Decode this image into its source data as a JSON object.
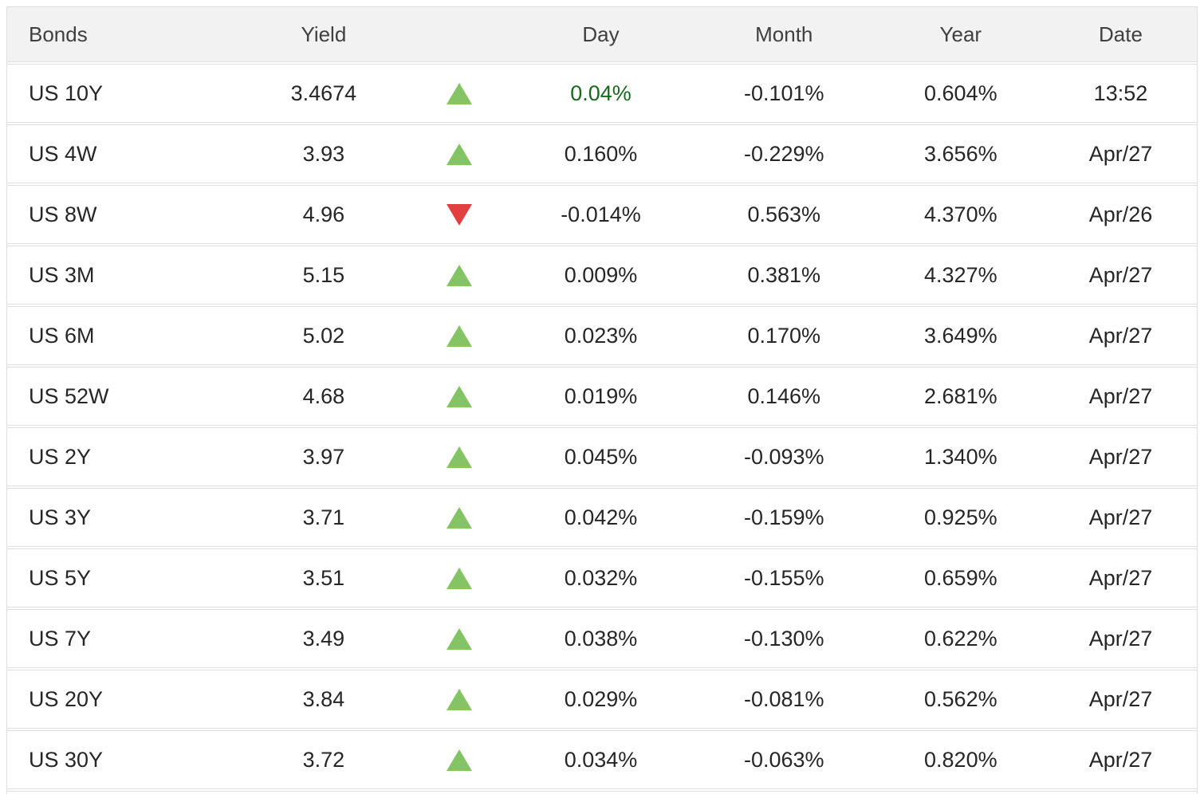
{
  "table": {
    "columns": [
      {
        "label": "Bonds"
      },
      {
        "label": "Yield"
      },
      {
        "label": ""
      },
      {
        "label": "Day"
      },
      {
        "label": "Month"
      },
      {
        "label": "Year"
      },
      {
        "label": "Date"
      }
    ],
    "rows": [
      {
        "bond": "US 10Y",
        "yield": "3.4674",
        "direction": "up",
        "day": "0.04%",
        "day_highlight": true,
        "month": "-0.101%",
        "year": "0.604%",
        "date": "13:52"
      },
      {
        "bond": "US 4W",
        "yield": "3.93",
        "direction": "up",
        "day": "0.160%",
        "day_highlight": false,
        "month": "-0.229%",
        "year": "3.656%",
        "date": "Apr/27"
      },
      {
        "bond": "US 8W",
        "yield": "4.96",
        "direction": "down",
        "day": "-0.014%",
        "day_highlight": false,
        "month": "0.563%",
        "year": "4.370%",
        "date": "Apr/26"
      },
      {
        "bond": "US 3M",
        "yield": "5.15",
        "direction": "up",
        "day": "0.009%",
        "day_highlight": false,
        "month": "0.381%",
        "year": "4.327%",
        "date": "Apr/27"
      },
      {
        "bond": "US 6M",
        "yield": "5.02",
        "direction": "up",
        "day": "0.023%",
        "day_highlight": false,
        "month": "0.170%",
        "year": "3.649%",
        "date": "Apr/27"
      },
      {
        "bond": "US 52W",
        "yield": "4.68",
        "direction": "up",
        "day": "0.019%",
        "day_highlight": false,
        "month": "0.146%",
        "year": "2.681%",
        "date": "Apr/27"
      },
      {
        "bond": "US 2Y",
        "yield": "3.97",
        "direction": "up",
        "day": "0.045%",
        "day_highlight": false,
        "month": "-0.093%",
        "year": "1.340%",
        "date": "Apr/27"
      },
      {
        "bond": "US 3Y",
        "yield": "3.71",
        "direction": "up",
        "day": "0.042%",
        "day_highlight": false,
        "month": "-0.159%",
        "year": "0.925%",
        "date": "Apr/27"
      },
      {
        "bond": "US 5Y",
        "yield": "3.51",
        "direction": "up",
        "day": "0.032%",
        "day_highlight": false,
        "month": "-0.155%",
        "year": "0.659%",
        "date": "Apr/27"
      },
      {
        "bond": "US 7Y",
        "yield": "3.49",
        "direction": "up",
        "day": "0.038%",
        "day_highlight": false,
        "month": "-0.130%",
        "year": "0.622%",
        "date": "Apr/27"
      },
      {
        "bond": "US 20Y",
        "yield": "3.84",
        "direction": "up",
        "day": "0.029%",
        "day_highlight": false,
        "month": "-0.081%",
        "year": "0.562%",
        "date": "Apr/27"
      },
      {
        "bond": "US 30Y",
        "yield": "3.72",
        "direction": "up",
        "day": "0.034%",
        "day_highlight": false,
        "month": "-0.063%",
        "year": "0.820%",
        "date": "Apr/27"
      }
    ]
  },
  "colors": {
    "up_triangle": "#85c465",
    "down_triangle": "#e24040",
    "day_highlight_text": "#18691e",
    "header_bg": "#f2f2f2",
    "border": "#dedede"
  }
}
